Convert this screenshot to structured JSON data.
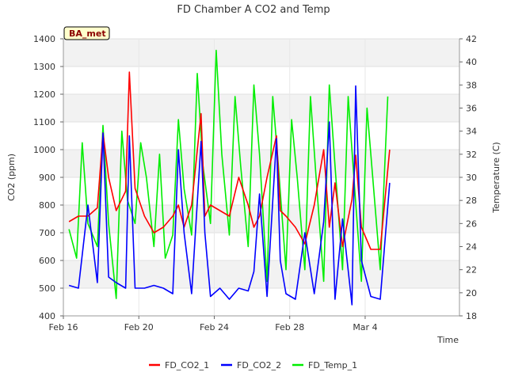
{
  "chart_data": {
    "type": "line",
    "title": "FD Chamber A CO2 and Temp",
    "badge": "BA_met",
    "xlabel": "Time",
    "ylabel_left": "CO2 (ppm)",
    "ylabel_right": "Temperature (C)",
    "x_range": [
      0,
      21
    ],
    "ylim_left": [
      400,
      1400
    ],
    "ylim_right": [
      18,
      42
    ],
    "x_ticks": [
      {
        "day": 0,
        "label": "Feb 16"
      },
      {
        "day": 4,
        "label": "Feb 20"
      },
      {
        "day": 8,
        "label": "Feb 24"
      },
      {
        "day": 12,
        "label": "Feb 28"
      },
      {
        "day": 16,
        "label": "Mar 4"
      }
    ],
    "y_ticks_left": [
      400,
      500,
      600,
      700,
      800,
      900,
      1000,
      1100,
      1200,
      1300,
      1400
    ],
    "y_ticks_right": [
      18,
      20,
      22,
      24,
      26,
      28,
      30,
      32,
      34,
      36,
      38,
      40,
      42
    ],
    "grid": true,
    "legend_position": "bottom",
    "colors": {
      "co2_1": "#ff0000",
      "co2_2": "#0000ff",
      "temp": "#00ee00",
      "band": "#f2f2f2",
      "badge_bg": "#ffffcc"
    },
    "series": [
      {
        "name": "FD_CO2_1",
        "axis": "left",
        "x": [
          0.3,
          0.8,
          1.3,
          1.8,
          2.1,
          2.4,
          2.8,
          3.3,
          3.5,
          3.8,
          4.3,
          4.8,
          5.3,
          5.8,
          6.1,
          6.4,
          6.8,
          7.3,
          7.5,
          7.8,
          8.3,
          8.8,
          9.3,
          9.8,
          10.1,
          10.4,
          10.8,
          11.3,
          11.5,
          11.8,
          12.3,
          12.8,
          13.3,
          13.8,
          14.1,
          14.4,
          14.8,
          15.3,
          15.5,
          15.8,
          16.3,
          16.8,
          17.3
        ],
        "y": [
          740,
          760,
          760,
          790,
          1060,
          900,
          780,
          850,
          1280,
          860,
          760,
          700,
          720,
          760,
          800,
          720,
          800,
          1130,
          760,
          800,
          780,
          760,
          900,
          800,
          720,
          760,
          900,
          1050,
          780,
          760,
          720,
          660,
          800,
          1000,
          720,
          880,
          650,
          820,
          980,
          720,
          640,
          640,
          1000
        ]
      },
      {
        "name": "FD_CO2_2",
        "axis": "left",
        "x": [
          0.3,
          0.8,
          1.3,
          1.8,
          2.1,
          2.4,
          2.8,
          3.3,
          3.5,
          3.8,
          4.3,
          4.8,
          5.3,
          5.8,
          6.1,
          6.4,
          6.8,
          7.3,
          7.5,
          7.8,
          8.3,
          8.8,
          9.3,
          9.8,
          10.1,
          10.4,
          10.8,
          11.3,
          11.5,
          11.8,
          12.3,
          12.8,
          13.3,
          13.8,
          14.1,
          14.4,
          14.8,
          15.3,
          15.5,
          15.8,
          16.3,
          16.8,
          17.3
        ],
        "y": [
          510,
          500,
          800,
          520,
          1060,
          540,
          520,
          500,
          1050,
          500,
          500,
          510,
          500,
          480,
          1000,
          700,
          480,
          1030,
          700,
          470,
          500,
          460,
          500,
          490,
          560,
          840,
          470,
          1040,
          600,
          480,
          460,
          700,
          480,
          740,
          1100,
          460,
          750,
          440,
          1230,
          600,
          470,
          460,
          880
        ]
      },
      {
        "name": "FD_Temp_1",
        "axis": "right",
        "x": [
          0.3,
          0.7,
          1.0,
          1.3,
          1.8,
          2.1,
          2.4,
          2.8,
          3.1,
          3.4,
          3.8,
          4.1,
          4.4,
          4.8,
          5.1,
          5.4,
          5.8,
          6.1,
          6.4,
          6.8,
          7.1,
          7.4,
          7.8,
          8.1,
          8.4,
          8.8,
          9.1,
          9.4,
          9.8,
          10.1,
          10.4,
          10.8,
          11.1,
          11.4,
          11.8,
          12.1,
          12.4,
          12.8,
          13.1,
          13.4,
          13.8,
          14.1,
          14.4,
          14.8,
          15.1,
          15.4,
          15.8,
          16.1,
          16.4,
          16.8,
          17.2
        ],
        "y": [
          25.5,
          23,
          33,
          26,
          24,
          34.5,
          26,
          19.5,
          34,
          28,
          26,
          33,
          30,
          24,
          32,
          23,
          25,
          35,
          29,
          25,
          39,
          31,
          26,
          41,
          32,
          25,
          37,
          31,
          24,
          38,
          32,
          21,
          37,
          31,
          22,
          35,
          30,
          22,
          37,
          30,
          21,
          38,
          31,
          22,
          37,
          30,
          21,
          36,
          30,
          22,
          37
        ]
      }
    ]
  }
}
